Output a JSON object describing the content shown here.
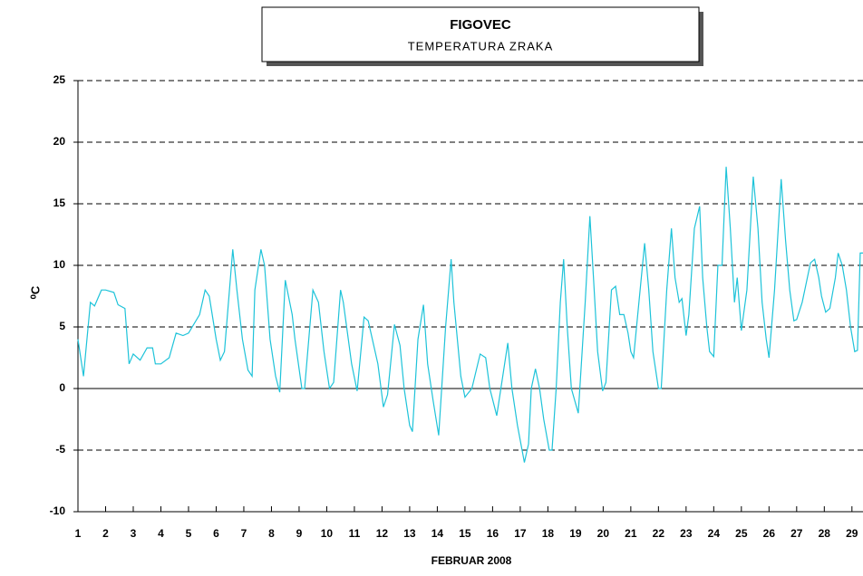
{
  "chart_data": {
    "type": "line",
    "title": "FIGOVEC",
    "subtitle": "TEMPERATURA ZRAKA",
    "xlabel": "FEBRUAR 2008",
    "ylabel": "⁰C",
    "color": "#1ec3d9",
    "grid": true,
    "xlim": [
      1,
      29.4
    ],
    "xticks": [
      1,
      2,
      3,
      4,
      5,
      6,
      7,
      8,
      9,
      10,
      11,
      12,
      13,
      14,
      15,
      16,
      17,
      18,
      19,
      20,
      21,
      22,
      23,
      24,
      25,
      26,
      27,
      28,
      29
    ],
    "ylim": [
      -10,
      25
    ],
    "yticks": [
      -10,
      -5,
      0,
      5,
      10,
      15,
      20,
      25
    ],
    "x": [
      1.0,
      1.2,
      1.45,
      1.6,
      1.85,
      2.0,
      2.3,
      2.45,
      2.7,
      2.85,
      3.0,
      3.25,
      3.5,
      3.7,
      3.8,
      4.0,
      4.3,
      4.55,
      4.8,
      5.0,
      5.4,
      5.6,
      5.75,
      6.0,
      6.15,
      6.3,
      6.6,
      6.75,
      6.95,
      7.15,
      7.3,
      7.4,
      7.62,
      7.75,
      7.95,
      8.15,
      8.3,
      8.5,
      8.75,
      8.85,
      9.1,
      9.2,
      9.5,
      9.7,
      9.9,
      10.1,
      10.25,
      10.5,
      10.6,
      10.9,
      11.1,
      11.35,
      11.5,
      11.85,
      12.05,
      12.2,
      12.45,
      12.65,
      12.8,
      13.0,
      13.1,
      13.3,
      13.5,
      13.65,
      13.85,
      14.05,
      14.3,
      14.5,
      14.6,
      14.85,
      15.0,
      15.25,
      15.55,
      15.75,
      15.9,
      16.15,
      16.3,
      16.55,
      16.7,
      16.9,
      17.15,
      17.3,
      17.4,
      17.55,
      17.7,
      17.85,
      18.05,
      18.15,
      18.3,
      18.45,
      18.57,
      18.7,
      18.85,
      19.1,
      19.35,
      19.52,
      19.65,
      19.8,
      19.98,
      20.1,
      20.3,
      20.45,
      20.6,
      20.75,
      20.9,
      21.0,
      21.1,
      21.5,
      21.65,
      21.8,
      22.0,
      22.1,
      22.3,
      22.47,
      22.6,
      22.75,
      22.85,
      23.0,
      23.1,
      23.3,
      23.49,
      23.6,
      23.75,
      23.85,
      24.0,
      24.15,
      24.3,
      24.45,
      24.6,
      24.75,
      24.85,
      25.0,
      25.2,
      25.43,
      25.6,
      25.75,
      25.9,
      26.0,
      26.2,
      26.44,
      26.6,
      26.75,
      26.9,
      27.0,
      27.2,
      27.5,
      27.65,
      27.8,
      27.9,
      28.05,
      28.2,
      28.4,
      28.5,
      28.65,
      28.8,
      28.95,
      29.1,
      29.2,
      29.3,
      29.4
    ],
    "values": [
      4,
      1,
      7,
      6.7,
      8,
      8,
      7.8,
      6.8,
      6.5,
      2,
      2.8,
      2.3,
      3.3,
      3.3,
      2,
      2,
      2.5,
      4.5,
      4.3,
      4.5,
      6,
      8,
      7.5,
      4,
      2.3,
      3,
      11.3,
      8,
      4,
      1.5,
      1,
      8,
      11.3,
      10,
      4,
      1,
      -0.3,
      8.8,
      6,
      4,
      0,
      0,
      8,
      7,
      3,
      0,
      0.5,
      8,
      7,
      2,
      -0.2,
      5.8,
      5.5,
      2,
      -1.5,
      -0.5,
      5.2,
      3.5,
      0,
      -3,
      -3.5,
      4,
      6.8,
      2,
      -1,
      -3.8,
      5,
      10.5,
      7,
      1,
      -0.7,
      0,
      2.8,
      2.5,
      0,
      -2.2,
      0,
      3.7,
      0,
      -3,
      -6,
      -4.5,
      0,
      1.6,
      0,
      -2.5,
      -5,
      -5,
      0,
      7,
      10.5,
      5,
      0,
      -2,
      7,
      14,
      9,
      3,
      -0.2,
      0.5,
      8,
      8.3,
      6,
      6,
      4.5,
      3,
      2.5,
      11.8,
      8,
      3,
      0,
      0,
      8,
      13,
      9,
      7,
      7.3,
      4.3,
      6,
      13,
      14.8,
      9,
      5,
      3,
      2.6,
      10,
      10,
      18,
      13,
      7,
      9,
      4.7,
      8,
      17.2,
      13,
      7,
      4,
      2.5,
      8,
      17,
      12,
      8,
      5.5,
      5.6,
      7,
      10.2,
      10.5,
      9,
      7.5,
      6.2,
      6.5,
      9,
      11,
      10,
      8,
      5,
      3,
      3.1,
      11,
      11
    ]
  }
}
